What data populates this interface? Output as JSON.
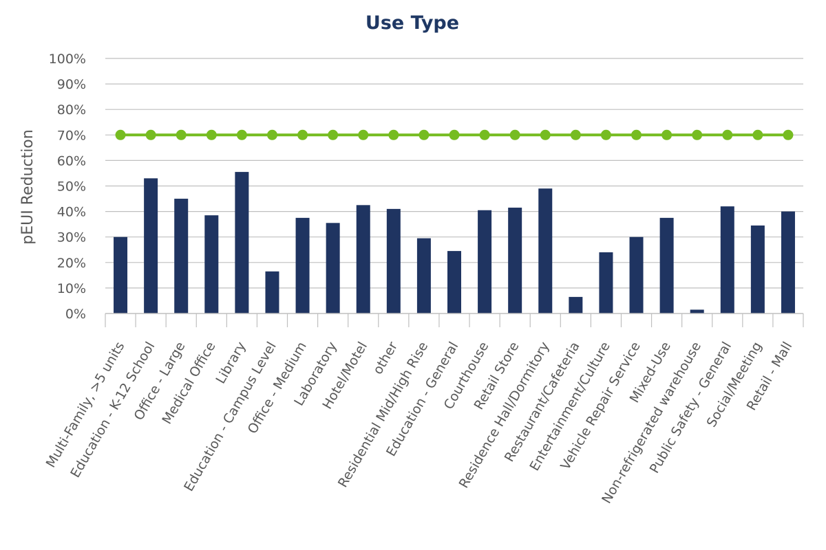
{
  "chart_data": {
    "type": "bar",
    "title": "Use Type",
    "xlabel": "",
    "ylabel": "pEUI Reduction",
    "ylim": [
      0,
      100
    ],
    "yticks": [
      "0%",
      "10%",
      "20%",
      "30%",
      "40%",
      "50%",
      "60%",
      "70%",
      "80%",
      "90%",
      "100%"
    ],
    "grid": true,
    "categories": [
      "Multi-Family, >5 units",
      "Education - K-12 School",
      "Office - Large",
      "Medical Office",
      "Library",
      "Education - Campus Level",
      "Office - Medium",
      "Laboratory",
      "Hotel/Motel",
      "other",
      "Residential Mid/High Rise",
      "Education - General",
      "Courthouse",
      "Retail Store",
      "Residence Hall/Dormitory",
      "Restaurant/Cafeteria",
      "Entertainment/Culture",
      "Vehicle Repair Service",
      "Mixed-Use",
      "Non-refrigerated warehouse",
      "Public Safety - General",
      "Social/Meeting",
      "Retail - Mall"
    ],
    "series": [
      {
        "type": "bar",
        "color": "#1f3461",
        "values": [
          30,
          53,
          45,
          38.5,
          55.5,
          16.5,
          37.5,
          35.5,
          42.5,
          41,
          29.5,
          24.5,
          40.5,
          41.5,
          49,
          6.5,
          24,
          30,
          37.5,
          1.5,
          42,
          34.5,
          40
        ]
      },
      {
        "type": "line",
        "color": "#76bc21",
        "values": [
          70,
          70,
          70,
          70,
          70,
          70,
          70,
          70,
          70,
          70,
          70,
          70,
          70,
          70,
          70,
          70,
          70,
          70,
          70,
          70,
          70,
          70,
          70
        ]
      }
    ]
  }
}
